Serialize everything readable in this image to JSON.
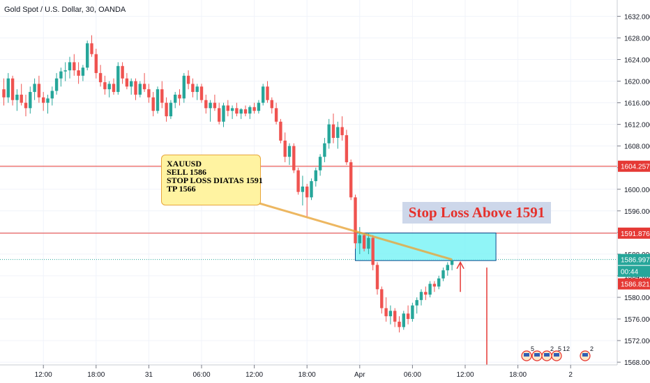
{
  "header": {
    "symbol_title": "Gold Spot / U.S. Dollar, 30, OANDA"
  },
  "note": {
    "lines": [
      "XAUUSD",
      "SELL 1586",
      "STOP LOSS DIATAS 1591",
      "TP 1566"
    ]
  },
  "banner_text": "Stop Loss Above 1591",
  "price_labels": {
    "resistance": "1604.257",
    "stop_level": "1591.876",
    "current": "1586.997",
    "countdown": "00:44",
    "lower": "1586.821"
  },
  "colors": {
    "up": "#26a69a",
    "down": "#ef5350",
    "line_red": "#e53935",
    "zone_fill": "#7df3f6",
    "zone_stroke": "#0a4b8c",
    "current_label": "#26a69a"
  },
  "events": {
    "badge_counts": [
      "5",
      "2",
      "5",
      "12",
      "2"
    ]
  },
  "chart_data": {
    "type": "candlestick",
    "y_axis_ticks": [
      1568,
      1572,
      1576,
      1580,
      1584,
      1588,
      1592,
      1596,
      1600,
      1604,
      1608,
      1612,
      1616,
      1620,
      1624,
      1628,
      1632
    ],
    "y_axis_tick_labels": [
      "1568.000",
      "1572.000",
      "1576.000",
      "1580.000",
      "1584.000",
      "1588.000",
      "1592.000",
      "1596.000",
      "1600.000",
      "1604.000",
      "1608.000",
      "1612.000",
      "1616.000",
      "1620.000",
      "1624.000",
      "1628.000",
      "1632.000"
    ],
    "ylim": [
      1567.5,
      1634.5
    ],
    "x_axis_labels": [
      "12:00",
      "18:00",
      "31",
      "06:00",
      "12:00",
      "18:00",
      "Apr",
      "06:00",
      "12:00",
      "18:00",
      "2"
    ],
    "bar_count": 132,
    "bar_labels": {
      "12:00": 9,
      "18:00": 21,
      "31": 33,
      "06:00": 45,
      "12:00#2": 57,
      "18:00#2": 69,
      "Apr": 81,
      "06:00#2": 93,
      "12:00#3": 105,
      "18:00#3": 117,
      "2": 129
    },
    "horizontal_lines": [
      {
        "price": 1604.257,
        "color": "#e53935"
      },
      {
        "price": 1591.876,
        "color": "#e53935"
      }
    ],
    "entry_price": 1586.997,
    "sell_zone": {
      "from": 1586.8,
      "to": 1591.9,
      "start_bar": 80,
      "end_bar": 112
    },
    "ohlc": [
      [
        1618.5,
        1620.5,
        1615.5,
        1617.0
      ],
      [
        1617.0,
        1621.5,
        1616.0,
        1620.5
      ],
      [
        1620.5,
        1621.0,
        1615.5,
        1616.5
      ],
      [
        1616.5,
        1618.5,
        1614.5,
        1617.5
      ],
      [
        1617.5,
        1619.5,
        1615.5,
        1616.0
      ],
      [
        1616.0,
        1617.5,
        1613.5,
        1615.0
      ],
      [
        1615.0,
        1619.0,
        1614.0,
        1618.0
      ],
      [
        1618.0,
        1620.5,
        1616.5,
        1619.5
      ],
      [
        1619.5,
        1621.0,
        1616.0,
        1617.0
      ],
      [
        1617.0,
        1618.0,
        1614.5,
        1616.0
      ],
      [
        1616.0,
        1617.5,
        1614.0,
        1616.8
      ],
      [
        1616.8,
        1619.0,
        1615.5,
        1618.2
      ],
      [
        1618.2,
        1621.5,
        1617.5,
        1620.5
      ],
      [
        1620.5,
        1622.5,
        1619.0,
        1621.8
      ],
      [
        1621.8,
        1623.5,
        1620.0,
        1622.0
      ],
      [
        1622.0,
        1624.5,
        1620.5,
        1623.5
      ],
      [
        1623.5,
        1625.0,
        1621.0,
        1622.0
      ],
      [
        1622.0,
        1623.5,
        1619.5,
        1621.0
      ],
      [
        1621.0,
        1623.0,
        1620.0,
        1622.5
      ],
      [
        1622.5,
        1627.5,
        1622.0,
        1627.0
      ],
      [
        1627.0,
        1628.5,
        1624.5,
        1625.0
      ],
      [
        1625.0,
        1626.0,
        1620.5,
        1621.5
      ],
      [
        1621.5,
        1623.0,
        1619.0,
        1619.8
      ],
      [
        1619.8,
        1621.0,
        1617.5,
        1618.5
      ],
      [
        1618.5,
        1620.0,
        1617.0,
        1619.5
      ],
      [
        1619.5,
        1620.5,
        1617.5,
        1618.0
      ],
      [
        1618.0,
        1623.5,
        1617.5,
        1622.8
      ],
      [
        1622.8,
        1623.5,
        1619.5,
        1620.5
      ],
      [
        1620.5,
        1621.5,
        1618.5,
        1619.0
      ],
      [
        1619.0,
        1620.5,
        1617.5,
        1620.0
      ],
      [
        1620.0,
        1620.5,
        1616.5,
        1617.5
      ],
      [
        1617.5,
        1620.0,
        1617.0,
        1619.5
      ],
      [
        1619.5,
        1621.5,
        1618.0,
        1618.5
      ],
      [
        1618.5,
        1619.5,
        1616.0,
        1617.0
      ],
      [
        1617.0,
        1618.0,
        1613.5,
        1614.5
      ],
      [
        1614.5,
        1619.0,
        1614.0,
        1618.5
      ],
      [
        1618.5,
        1620.0,
        1615.0,
        1616.0
      ],
      [
        1616.0,
        1617.0,
        1612.5,
        1613.5
      ],
      [
        1613.5,
        1616.5,
        1613.0,
        1616.0
      ],
      [
        1616.0,
        1618.0,
        1615.0,
        1617.5
      ],
      [
        1617.5,
        1618.5,
        1615.5,
        1616.8
      ],
      [
        1616.8,
        1621.5,
        1616.0,
        1621.0
      ],
      [
        1621.0,
        1622.0,
        1618.5,
        1619.5
      ],
      [
        1619.5,
        1620.5,
        1617.0,
        1618.0
      ],
      [
        1618.0,
        1619.5,
        1616.5,
        1619.0
      ],
      [
        1619.0,
        1619.5,
        1616.0,
        1616.5
      ],
      [
        1616.5,
        1617.5,
        1614.0,
        1615.0
      ],
      [
        1615.0,
        1616.5,
        1612.5,
        1616.0
      ],
      [
        1616.0,
        1617.5,
        1614.5,
        1615.0
      ],
      [
        1615.0,
        1616.0,
        1612.0,
        1612.5
      ],
      [
        1612.5,
        1616.0,
        1611.5,
        1615.5
      ],
      [
        1615.5,
        1616.5,
        1613.5,
        1614.5
      ],
      [
        1614.5,
        1615.5,
        1613.0,
        1615.0
      ],
      [
        1615.0,
        1616.0,
        1613.5,
        1614.0
      ],
      [
        1614.0,
        1615.0,
        1613.0,
        1614.8
      ],
      [
        1614.8,
        1615.5,
        1613.5,
        1614.0
      ],
      [
        1614.0,
        1615.5,
        1613.0,
        1615.2
      ],
      [
        1615.2,
        1616.0,
        1614.0,
        1614.5
      ],
      [
        1614.5,
        1616.5,
        1614.0,
        1616.0
      ],
      [
        1616.0,
        1619.5,
        1615.5,
        1619.0
      ],
      [
        1619.0,
        1620.0,
        1616.0,
        1616.5
      ],
      [
        1616.5,
        1617.0,
        1614.0,
        1615.0
      ],
      [
        1615.0,
        1616.0,
        1612.0,
        1612.5
      ],
      [
        1612.5,
        1613.0,
        1608.5,
        1609.0
      ],
      [
        1609.0,
        1610.5,
        1605.0,
        1606.0
      ],
      [
        1606.0,
        1608.5,
        1604.5,
        1608.0
      ],
      [
        1608.0,
        1608.5,
        1603.0,
        1603.5
      ],
      [
        1603.5,
        1604.0,
        1599.0,
        1599.5
      ],
      [
        1599.5,
        1602.5,
        1597.0,
        1600.5
      ],
      [
        1600.5,
        1601.0,
        1595.0,
        1598.5
      ],
      [
        1598.5,
        1602.0,
        1598.0,
        1601.5
      ],
      [
        1601.5,
        1604.0,
        1600.5,
        1603.5
      ],
      [
        1603.5,
        1606.5,
        1602.5,
        1606.0
      ],
      [
        1606.0,
        1609.5,
        1605.0,
        1608.5
      ],
      [
        1608.5,
        1613.0,
        1607.5,
        1612.0
      ],
      [
        1612.0,
        1614.0,
        1608.5,
        1609.5
      ],
      [
        1609.5,
        1612.5,
        1607.5,
        1611.5
      ],
      [
        1611.5,
        1613.5,
        1609.0,
        1610.0
      ],
      [
        1610.0,
        1611.0,
        1604.5,
        1605.0
      ],
      [
        1605.0,
        1605.5,
        1598.0,
        1598.5
      ],
      [
        1598.5,
        1599.0,
        1589.0,
        1590.0
      ],
      [
        1590.0,
        1593.0,
        1588.0,
        1591.5
      ],
      [
        1591.5,
        1592.0,
        1588.5,
        1589.0
      ],
      [
        1589.0,
        1592.0,
        1588.0,
        1591.0
      ],
      [
        1591.0,
        1591.5,
        1585.0,
        1586.0
      ],
      [
        1586.0,
        1586.5,
        1580.5,
        1581.5
      ],
      [
        1581.5,
        1582.0,
        1577.0,
        1578.0
      ],
      [
        1578.0,
        1580.0,
        1575.5,
        1576.5
      ],
      [
        1576.5,
        1578.5,
        1575.0,
        1577.5
      ],
      [
        1577.5,
        1578.0,
        1574.5,
        1575.5
      ],
      [
        1575.5,
        1576.5,
        1573.5,
        1574.5
      ],
      [
        1574.5,
        1577.5,
        1574.0,
        1577.0
      ],
      [
        1577.0,
        1578.5,
        1575.0,
        1576.0
      ],
      [
        1576.0,
        1579.0,
        1575.5,
        1578.5
      ],
      [
        1578.5,
        1580.0,
        1577.0,
        1579.5
      ],
      [
        1579.5,
        1581.5,
        1578.5,
        1581.0
      ],
      [
        1581.0,
        1582.0,
        1579.5,
        1580.5
      ],
      [
        1580.5,
        1583.0,
        1580.0,
        1582.5
      ],
      [
        1582.5,
        1583.0,
        1581.0,
        1582.0
      ],
      [
        1582.0,
        1584.0,
        1581.5,
        1583.5
      ],
      [
        1583.5,
        1585.5,
        1583.0,
        1585.0
      ],
      [
        1585.0,
        1586.5,
        1584.0,
        1586.0
      ],
      [
        1586.0,
        1587.0,
        1585.0,
        1586.8
      ]
    ]
  }
}
